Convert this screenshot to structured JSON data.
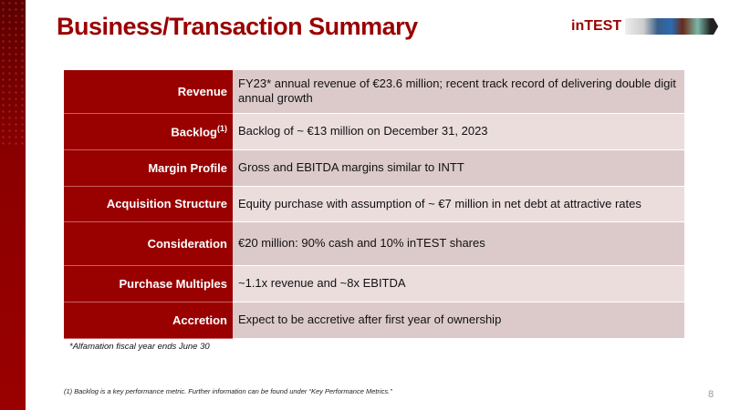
{
  "title": "Business/Transaction Summary",
  "logo": {
    "text": "inTEST",
    "brand_color": "#9a0000"
  },
  "rows": [
    {
      "label": "Revenue",
      "value": "FY23* annual revenue of €23.6 million; recent track record of delivering double digit annual growth"
    },
    {
      "label": "Backlog",
      "sup": "(1)",
      "value": "Backlog of ~ €13 million on December 31, 2023"
    },
    {
      "label": "Margin Profile",
      "value": "Gross and EBITDA margins similar to INTT"
    },
    {
      "label": "Acquisition Structure",
      "value": "Equity purchase with assumption of ~ €7 million in net debt at attractive rates"
    },
    {
      "label": "Consideration",
      "value": "€20 million:  90% cash and 10% inTEST shares"
    },
    {
      "label": "Purchase Multiples",
      "value": "~1.1x revenue and ~8x EBITDA"
    },
    {
      "label": "Accretion",
      "value": "Expect to be accretive after first year of ownership"
    }
  ],
  "note": "*Alfamation fiscal year ends June 30",
  "footnote": "(1)   Backlog is a key performance metric.  Further information can be found under “Key Performance Metrics.”",
  "page_number": "8"
}
